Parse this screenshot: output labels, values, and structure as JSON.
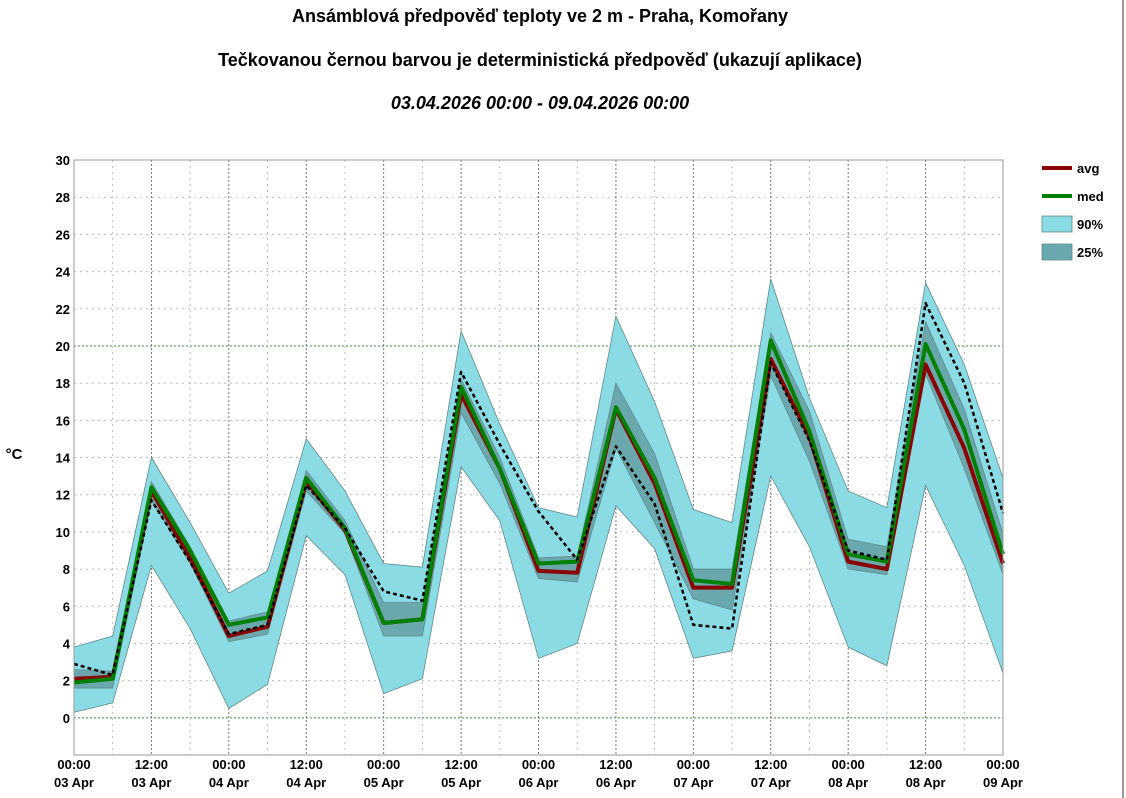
{
  "titles": {
    "line1": "Ansámblová předpověď teploty ve 2 m - Praha, Komořany",
    "line2": "Tečkovanou černou barvou je deterministická předpověď (ukazují aplikace)",
    "line3": "03.04.2026 00:00 - 09.04.2026 00:00"
  },
  "colors": {
    "avg": "#8b0000",
    "med": "#008000",
    "band90": "#8adbe3",
    "band25": "#6aa8ad",
    "deterministic": "#000000",
    "grid_major": "#777777",
    "grid_minor": "#bbbbbb",
    "grid_zero": "#3a9a3a"
  },
  "chart_data": {
    "type": "line",
    "ylabel": "°C",
    "ylim": [
      -2,
      30
    ],
    "yticks": [
      0,
      2,
      4,
      6,
      8,
      10,
      12,
      14,
      16,
      18,
      20,
      22,
      24,
      26,
      28,
      30
    ],
    "x": [
      0,
      6,
      12,
      18,
      24,
      30,
      36,
      42,
      48,
      54,
      60,
      66,
      72,
      78,
      84,
      90,
      96,
      102,
      108,
      114,
      120,
      126,
      132,
      138,
      144
    ],
    "xticks": [
      {
        "h": 0,
        "time": "00:00",
        "date": "03 Apr"
      },
      {
        "h": 12,
        "time": "12:00",
        "date": "03 Apr"
      },
      {
        "h": 24,
        "time": "00:00",
        "date": "04 Apr"
      },
      {
        "h": 36,
        "time": "12:00",
        "date": "04 Apr"
      },
      {
        "h": 48,
        "time": "00:00",
        "date": "05 Apr"
      },
      {
        "h": 60,
        "time": "12:00",
        "date": "05 Apr"
      },
      {
        "h": 72,
        "time": "00:00",
        "date": "06 Apr"
      },
      {
        "h": 84,
        "time": "12:00",
        "date": "06 Apr"
      },
      {
        "h": 96,
        "time": "00:00",
        "date": "07 Apr"
      },
      {
        "h": 108,
        "time": "12:00",
        "date": "07 Apr"
      },
      {
        "h": 120,
        "time": "00:00",
        "date": "08 Apr"
      },
      {
        "h": 132,
        "time": "12:00",
        "date": "08 Apr"
      },
      {
        "h": 144,
        "time": "00:00",
        "date": "09 Apr"
      }
    ],
    "legend": [
      {
        "key": "avg",
        "label": "avg",
        "kind": "line"
      },
      {
        "key": "med",
        "label": "med",
        "kind": "line"
      },
      {
        "key": "band90",
        "label": "90%",
        "kind": "box"
      },
      {
        "key": "band25",
        "label": "25%",
        "kind": "box"
      }
    ],
    "legend_position": "right",
    "grid": true,
    "series": {
      "p90_low": [
        0.3,
        0.8,
        8.2,
        4.8,
        0.5,
        1.8,
        9.8,
        7.7,
        1.3,
        2.1,
        13.5,
        10.6,
        3.2,
        4.0,
        11.4,
        9.1,
        3.2,
        3.6,
        13.0,
        9.2,
        3.8,
        2.8,
        12.5,
        8.2,
        2.4
      ],
      "p90_high": [
        3.8,
        4.4,
        14.0,
        10.5,
        6.7,
        7.9,
        15.0,
        12.2,
        8.3,
        8.1,
        20.8,
        15.8,
        11.3,
        10.8,
        21.6,
        17.0,
        11.2,
        10.5,
        23.6,
        17.2,
        12.2,
        11.3,
        23.4,
        19.0,
        12.9
      ],
      "p25_low": [
        1.6,
        1.6,
        11.7,
        8.3,
        4.1,
        4.5,
        12.2,
        9.9,
        4.4,
        4.4,
        16.4,
        12.6,
        7.5,
        7.3,
        14.5,
        10.5,
        6.4,
        5.8,
        18.4,
        13.8,
        8.0,
        7.7,
        18.5,
        13.4,
        7.7
      ],
      "p25_high": [
        2.6,
        2.5,
        12.7,
        9.2,
        5.2,
        5.7,
        13.3,
        10.6,
        6.2,
        6.2,
        18.2,
        14.0,
        8.6,
        8.7,
        18.0,
        14.2,
        8.0,
        8.0,
        20.7,
        16.5,
        9.6,
        9.2,
        21.3,
        16.6,
        9.9
      ],
      "avg": [
        2.1,
        2.2,
        12.2,
        8.6,
        4.4,
        4.9,
        12.7,
        10.1,
        5.1,
        5.3,
        17.4,
        13.4,
        7.9,
        7.8,
        16.6,
        12.6,
        7.0,
        7.0,
        19.3,
        15.1,
        8.4,
        8.0,
        19.0,
        14.5,
        8.3
      ],
      "med": [
        1.9,
        2.1,
        12.4,
        9.0,
        5.0,
        5.4,
        12.9,
        10.2,
        5.1,
        5.3,
        17.8,
        13.4,
        8.3,
        8.4,
        16.7,
        12.9,
        7.4,
        7.2,
        20.3,
        15.4,
        8.8,
        8.4,
        20.1,
        15.5,
        8.8
      ],
      "deterministic": [
        2.9,
        2.3,
        11.7,
        8.4,
        4.5,
        5.0,
        12.5,
        10.2,
        6.8,
        6.3,
        18.6,
        14.7,
        11.1,
        8.5,
        14.6,
        11.5,
        5.0,
        4.8,
        19.1,
        14.9,
        9.0,
        8.5,
        22.3,
        18.0,
        11.0
      ]
    }
  }
}
